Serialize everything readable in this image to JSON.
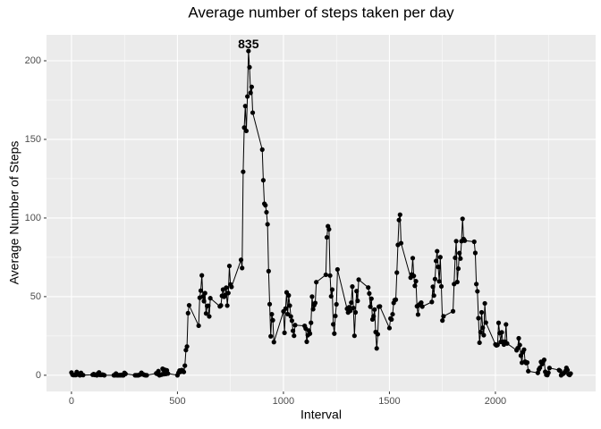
{
  "chart_data": {
    "type": "line",
    "title": "Average number of steps taken per day",
    "x_label": "Interval",
    "y_label": "Average Number of Steps",
    "x": [
      0,
      5,
      10,
      15,
      20,
      25,
      30,
      35,
      40,
      45,
      50,
      55,
      100,
      105,
      110,
      115,
      120,
      125,
      130,
      135,
      140,
      145,
      150,
      155,
      200,
      205,
      210,
      215,
      220,
      225,
      230,
      235,
      240,
      245,
      250,
      255,
      300,
      305,
      310,
      315,
      320,
      325,
      330,
      335,
      340,
      345,
      350,
      355,
      400,
      405,
      410,
      415,
      420,
      425,
      430,
      435,
      440,
      445,
      450,
      455,
      500,
      505,
      510,
      515,
      520,
      525,
      530,
      535,
      540,
      545,
      550,
      555,
      600,
      605,
      610,
      615,
      620,
      625,
      630,
      635,
      640,
      645,
      650,
      655,
      700,
      705,
      710,
      715,
      720,
      725,
      730,
      735,
      740,
      745,
      750,
      755,
      800,
      805,
      810,
      815,
      820,
      825,
      830,
      835,
      840,
      845,
      850,
      855,
      900,
      905,
      910,
      915,
      920,
      925,
      930,
      935,
      940,
      945,
      950,
      955,
      1000,
      1005,
      1010,
      1015,
      1020,
      1025,
      1030,
      1035,
      1040,
      1045,
      1050,
      1055,
      1100,
      1105,
      1110,
      1115,
      1120,
      1125,
      1130,
      1135,
      1140,
      1145,
      1150,
      1155,
      1200,
      1205,
      1210,
      1215,
      1220,
      1225,
      1230,
      1235,
      1240,
      1245,
      1250,
      1255,
      1300,
      1305,
      1310,
      1315,
      1320,
      1325,
      1330,
      1335,
      1340,
      1345,
      1350,
      1355,
      1400,
      1405,
      1410,
      1415,
      1420,
      1425,
      1430,
      1435,
      1440,
      1445,
      1450,
      1455,
      1500,
      1505,
      1510,
      1515,
      1520,
      1525,
      1530,
      1535,
      1540,
      1545,
      1550,
      1555,
      1600,
      1605,
      1610,
      1615,
      1620,
      1625,
      1630,
      1635,
      1640,
      1645,
      1650,
      1655,
      1700,
      1705,
      1710,
      1715,
      1720,
      1725,
      1730,
      1735,
      1740,
      1745,
      1750,
      1755,
      1800,
      1805,
      1810,
      1815,
      1820,
      1825,
      1830,
      1835,
      1840,
      1845,
      1850,
      1855,
      1900,
      1905,
      1910,
      1915,
      1920,
      1925,
      1930,
      1935,
      1940,
      1945,
      1950,
      1955,
      2000,
      2005,
      2010,
      2015,
      2020,
      2025,
      2030,
      2035,
      2040,
      2045,
      2050,
      2055,
      2100,
      2105,
      2110,
      2115,
      2120,
      2125,
      2130,
      2135,
      2140,
      2145,
      2150,
      2155,
      2200,
      2205,
      2210,
      2215,
      2220,
      2225,
      2230,
      2235,
      2240,
      2245,
      2250,
      2255,
      2300,
      2305,
      2310,
      2315,
      2320,
      2325,
      2330,
      2335,
      2340,
      2345,
      2350,
      2355
    ],
    "values": [
      1.7,
      0.3,
      0.1,
      0.2,
      0.1,
      2.1,
      0.5,
      0.9,
      0,
      1.5,
      0.3,
      0.1,
      0.3,
      0.7,
      0.2,
      0.3,
      0,
      1.1,
      1.8,
      0.2,
      0.2,
      0.4,
      0.3,
      0,
      0,
      0,
      1.1,
      0,
      0,
      0.1,
      0,
      0.2,
      0,
      0,
      1.5,
      0.9,
      0,
      0,
      0,
      0,
      0.2,
      0.6,
      1.6,
      0.6,
      0.5,
      0.1,
      0,
      0,
      1.2,
      0.9,
      2.6,
      0,
      0.3,
      0.4,
      4.1,
      0.7,
      3.5,
      0.8,
      3.1,
      1.1,
      0,
      1.6,
      3,
      2.2,
      3.3,
      3,
      2.1,
      6.1,
      16,
      18.3,
      39.5,
      44.5,
      31.5,
      49.3,
      53.8,
      63.5,
      50,
      47.1,
      52.2,
      39.3,
      44,
      44.2,
      37.4,
      49,
      43.8,
      44.4,
      50.5,
      54.5,
      49.9,
      51,
      55.7,
      44.3,
      52.3,
      69.5,
      57.8,
      56.2,
      73.4,
      68.2,
      129.4,
      157.5,
      171.2,
      155.4,
      177.3,
      206.2,
      195.9,
      179.6,
      183.4,
      167,
      143.5,
      124,
      109.1,
      108.1,
      103.7,
      96,
      66.2,
      45.2,
      24.8,
      38.8,
      35,
      21.1,
      40.6,
      27,
      42.4,
      52.7,
      38.9,
      50.8,
      44.3,
      37.4,
      34.7,
      28.3,
      25.1,
      31.9,
      31.4,
      29.7,
      21.3,
      25.5,
      28.4,
      26.5,
      33.4,
      50,
      42,
      44.6,
      46,
      59.2,
      63.9,
      87.7,
      94.8,
      92.8,
      63.4,
      50.2,
      54.5,
      32.4,
      26.5,
      37.7,
      45.1,
      67.3,
      42.3,
      39.9,
      43.3,
      41,
      46.2,
      56.4,
      42.8,
      25.1,
      40,
      53.5,
      47.3,
      60.8,
      55.8,
      52,
      43.6,
      48.7,
      35.5,
      37.5,
      41.8,
      27.5,
      17.1,
      26.1,
      43.6,
      43.8,
      30,
      36.1,
      35.5,
      38.8,
      46,
      47.8,
      48.1,
      65.3,
      82.9,
      98.7,
      102.1,
      84,
      62.1,
      64.1,
      74.5,
      63.2,
      56.9,
      59.8,
      43.9,
      38.6,
      44.7,
      45.5,
      46.2,
      43.7,
      46.6,
      56.3,
      50.7,
      61.2,
      72.7,
      78.9,
      68.9,
      59.7,
      75.1,
      56.5,
      34.8,
      37.5,
      40.7,
      58,
      74.7,
      85.3,
      59.3,
      67.8,
      77.7,
      74.2,
      85.3,
      99.5,
      86.6,
      85.6,
      84.9,
      77.8,
      58,
      53.4,
      36.3,
      20.7,
      27.4,
      40,
      30.2,
      25.5,
      45.7,
      33.5,
      19.6,
      19,
      19.3,
      33.3,
      26.8,
      21.2,
      27.3,
      21.3,
      19.5,
      21.3,
      32.3,
      20.2,
      15.9,
      17.2,
      23.5,
      19.2,
      12.5,
      8,
      14.7,
      16.3,
      8.7,
      7.8,
      8.1,
      2.6,
      1.5,
      3.7,
      4.8,
      8.5,
      7.1,
      8.7,
      9.8,
      2.2,
      0.3,
      0.1,
      1.6,
      4.6,
      3.3,
      2.8,
      0,
      0.8,
      1,
      1.6,
      2.6,
      4.7,
      3.3,
      0.6,
      0.2,
      1.1
    ],
    "color": "#000000",
    "annotations": [
      {
        "text": "835",
        "x": 835,
        "y": 210
      }
    ],
    "xlim": [
      -117.75,
      2472.75
    ],
    "xticks": [
      0,
      500,
      1000,
      1500,
      2000
    ],
    "ylim": [
      -10.31,
      216.48
    ],
    "yticks": [
      0,
      50,
      100,
      150,
      200
    ],
    "grid": true
  }
}
